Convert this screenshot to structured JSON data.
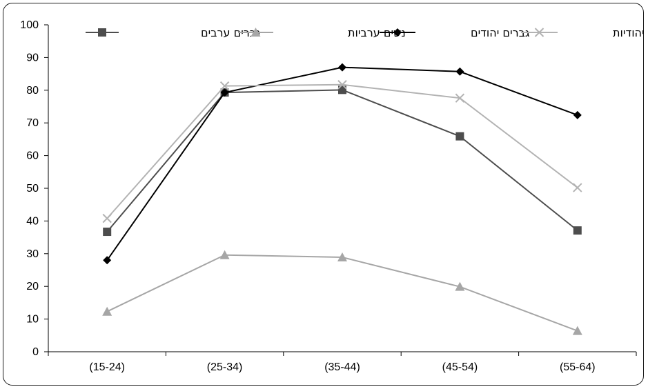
{
  "chart_data": {
    "type": "line",
    "categories": [
      "(15-24)",
      "(25-34)",
      "(35-44)",
      "(45-54)",
      "(55-64)"
    ],
    "ylim": [
      0,
      100
    ],
    "yticks": [
      0,
      10,
      20,
      30,
      40,
      50,
      60,
      70,
      80,
      90,
      100
    ],
    "grid": false,
    "legend_position": "top",
    "series": [
      {
        "name": "גברים ערבים",
        "marker": "square",
        "color": "#4d4d4d",
        "values": [
          36.7,
          79.3,
          80.1,
          65.9,
          37.1
        ]
      },
      {
        "name": "נשים ערביות",
        "marker": "triangle",
        "color": "#a6a6a6",
        "values": [
          12.3,
          29.6,
          28.9,
          19.9,
          6.4
        ]
      },
      {
        "name": "גברים יהודים",
        "marker": "diamond",
        "color": "#000000",
        "values": [
          28.0,
          79.3,
          87.0,
          85.7,
          72.4
        ]
      },
      {
        "name": "נשים יהודיות",
        "marker": "x",
        "color": "#b3b3b3",
        "values": [
          40.8,
          81.3,
          81.7,
          77.6,
          50.2
        ]
      }
    ]
  }
}
